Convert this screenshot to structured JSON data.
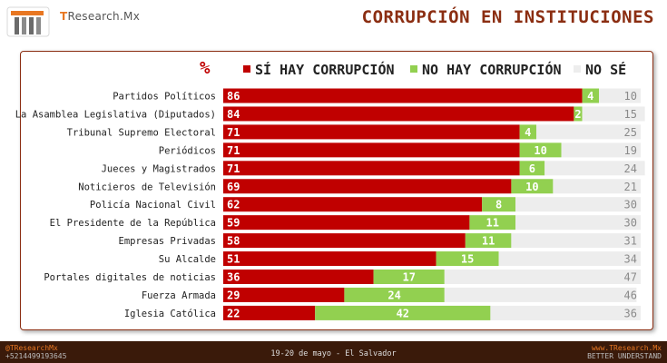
{
  "header": {
    "brand_prefix": "T",
    "brand_rest": "Research.Mx",
    "title": "CORRUPCIÓN EN INSTITUCIONES"
  },
  "legend": {
    "percent_symbol": "%",
    "yes": "SÍ HAY CORRUPCIÓN",
    "no": "NO HAY CORRUPCIÓN",
    "dont_know": "NO SÉ"
  },
  "colors": {
    "yes": "#c00000",
    "no": "#92d050",
    "dont_know": "#ededed",
    "accent": "#e87722",
    "title": "#8b2e12"
  },
  "chart_data": {
    "type": "bar",
    "orientation": "horizontal",
    "stacked": true,
    "categories": [
      "Partidos Políticos",
      "La Asamblea Legislativa (Diputados)",
      "Tribunal Supremo Electoral",
      "Periódicos",
      "Jueces y Magistrados",
      "Noticieros de Televisión",
      "Policía Nacional Civil",
      "El Presidente de la República",
      "Empresas Privadas",
      "Su Alcalde",
      "Portales digitales de noticias",
      "Fuerza Armada",
      "Iglesia Católica"
    ],
    "series": [
      {
        "name": "SÍ HAY CORRUPCIÓN",
        "values": [
          86,
          84,
          71,
          71,
          71,
          69,
          62,
          59,
          58,
          51,
          36,
          29,
          22
        ]
      },
      {
        "name": "NO HAY CORRUPCIÓN",
        "values": [
          4,
          2,
          4,
          10,
          6,
          10,
          8,
          11,
          11,
          15,
          17,
          24,
          42
        ]
      },
      {
        "name": "NO SÉ",
        "values": [
          10,
          15,
          25,
          19,
          24,
          21,
          30,
          30,
          31,
          34,
          47,
          46,
          36
        ]
      }
    ],
    "xlim": [
      0,
      100
    ],
    "legend_position": "top"
  },
  "footer": {
    "handle": "@TResearchMx",
    "phone": "+5214499193645",
    "center": "19-20 de mayo - El Salvador",
    "website": "www.TResearch.Mx",
    "tagline": "BETTER UNDERSTAND"
  }
}
